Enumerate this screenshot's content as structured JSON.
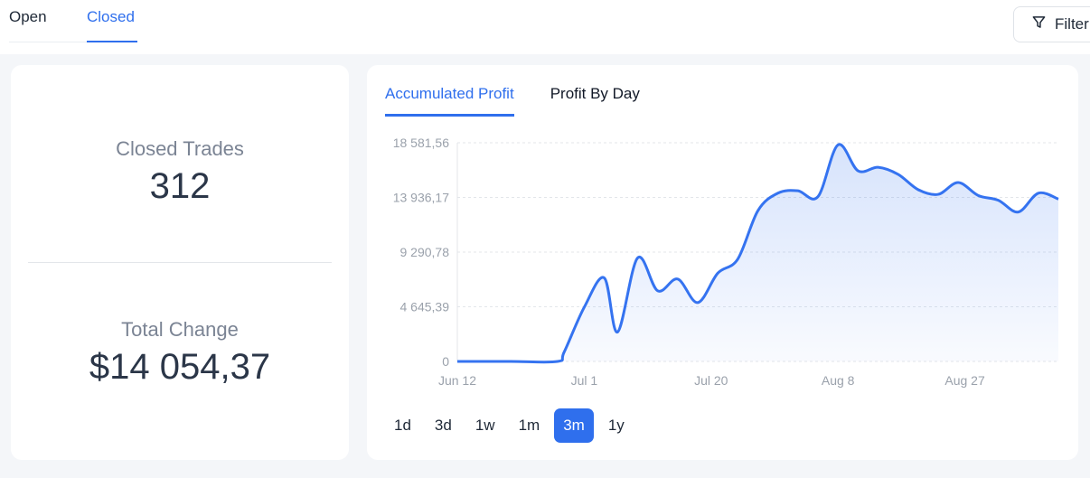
{
  "tabs": [
    {
      "label": "Open"
    },
    {
      "label": "Closed"
    }
  ],
  "filter": {
    "label": "Filter",
    "icon": "filter-icon"
  },
  "stats": {
    "closed_trades_label": "Closed Trades",
    "closed_trades_value": "312",
    "total_change_label": "Total Change",
    "total_change_value": "$14 054,37"
  },
  "chart_tabs": [
    {
      "label": "Accumulated Profit"
    },
    {
      "label": "Profit By Day"
    }
  ],
  "periods": [
    {
      "label": "1d"
    },
    {
      "label": "3d"
    },
    {
      "label": "1w"
    },
    {
      "label": "1m"
    },
    {
      "label": "3m"
    },
    {
      "label": "1y"
    }
  ],
  "active_period": "3m",
  "colors": {
    "accent": "#2f6fed",
    "line": "#3573f0"
  },
  "chart_data": {
    "type": "area",
    "title": "",
    "xlabel": "",
    "ylabel": "",
    "y_tick_labels": [
      "0",
      "4 645,39",
      "9 290,78",
      "13 936,17",
      "18 581,56"
    ],
    "y_ticks": [
      0,
      4645.39,
      9290.78,
      13936.17,
      18581.56
    ],
    "ylim": [
      0,
      18581.56
    ],
    "x_tick_labels": [
      "Jun 12",
      "Jul 1",
      "Jul 20",
      "Aug 8",
      "Aug 27"
    ],
    "x_tick_days": [
      0,
      19,
      38,
      57,
      76
    ],
    "xlim_days": [
      0,
      90
    ],
    "grid": true,
    "series": [
      {
        "points": [
          [
            0,
            0
          ],
          [
            8,
            0
          ],
          [
            15,
            0
          ],
          [
            16,
            800
          ],
          [
            19,
            4600
          ],
          [
            22,
            7100
          ],
          [
            24,
            2500
          ],
          [
            27,
            8800
          ],
          [
            30,
            6000
          ],
          [
            33,
            7000
          ],
          [
            36,
            5000
          ],
          [
            39,
            7500
          ],
          [
            42,
            8700
          ],
          [
            45,
            12800
          ],
          [
            48,
            14300
          ],
          [
            51,
            14500
          ],
          [
            54,
            14000
          ],
          [
            57,
            18400
          ],
          [
            60,
            16200
          ],
          [
            63,
            16500
          ],
          [
            66,
            15900
          ],
          [
            69,
            14600
          ],
          [
            72,
            14200
          ],
          [
            75,
            15200
          ],
          [
            78,
            14100
          ],
          [
            81,
            13700
          ],
          [
            84,
            12700
          ],
          [
            87,
            14300
          ],
          [
            90,
            13800
          ]
        ]
      }
    ]
  }
}
